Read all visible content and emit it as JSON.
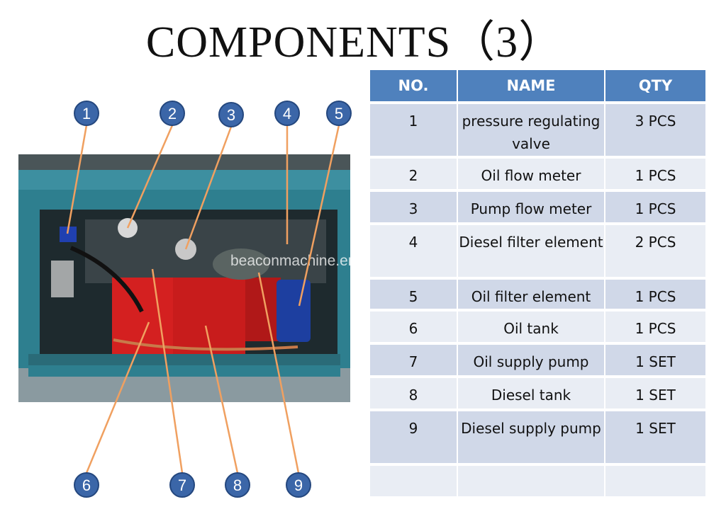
{
  "title": "COMPONENTS（3）",
  "watermark": "beaconmachine.en.alibaba.com",
  "colors": {
    "header": "#4f81bd",
    "row_odd": "#d0d8e8",
    "row_even": "#e9edf4",
    "callout": "#3b66a8",
    "arrow": "#f0a060"
  },
  "table": {
    "headers": [
      "NO.",
      "NAME",
      "QTY"
    ],
    "rows": [
      {
        "no": "1",
        "name": "pressure regulating valve",
        "qty": "3 PCS"
      },
      {
        "no": "2",
        "name": "Oil flow meter",
        "qty": "1 PCS"
      },
      {
        "no": "3",
        "name": "Pump flow meter",
        "qty": "1 PCS"
      },
      {
        "no": "4",
        "name": "Diesel filter element",
        "qty": "2 PCS"
      },
      {
        "no": "5",
        "name": "Oil filter element",
        "qty": "1 PCS"
      },
      {
        "no": "6",
        "name": "Oil tank",
        "qty": "1 PCS"
      },
      {
        "no": "7",
        "name": "Oil supply pump",
        "qty": "1 SET"
      },
      {
        "no": "8",
        "name": "Diesel tank",
        "qty": "1 SET"
      },
      {
        "no": "9",
        "name": "Diesel supply pump",
        "qty": "1 SET"
      }
    ]
  },
  "callouts": [
    "1",
    "2",
    "3",
    "4",
    "5",
    "6",
    "7",
    "8",
    "9"
  ]
}
